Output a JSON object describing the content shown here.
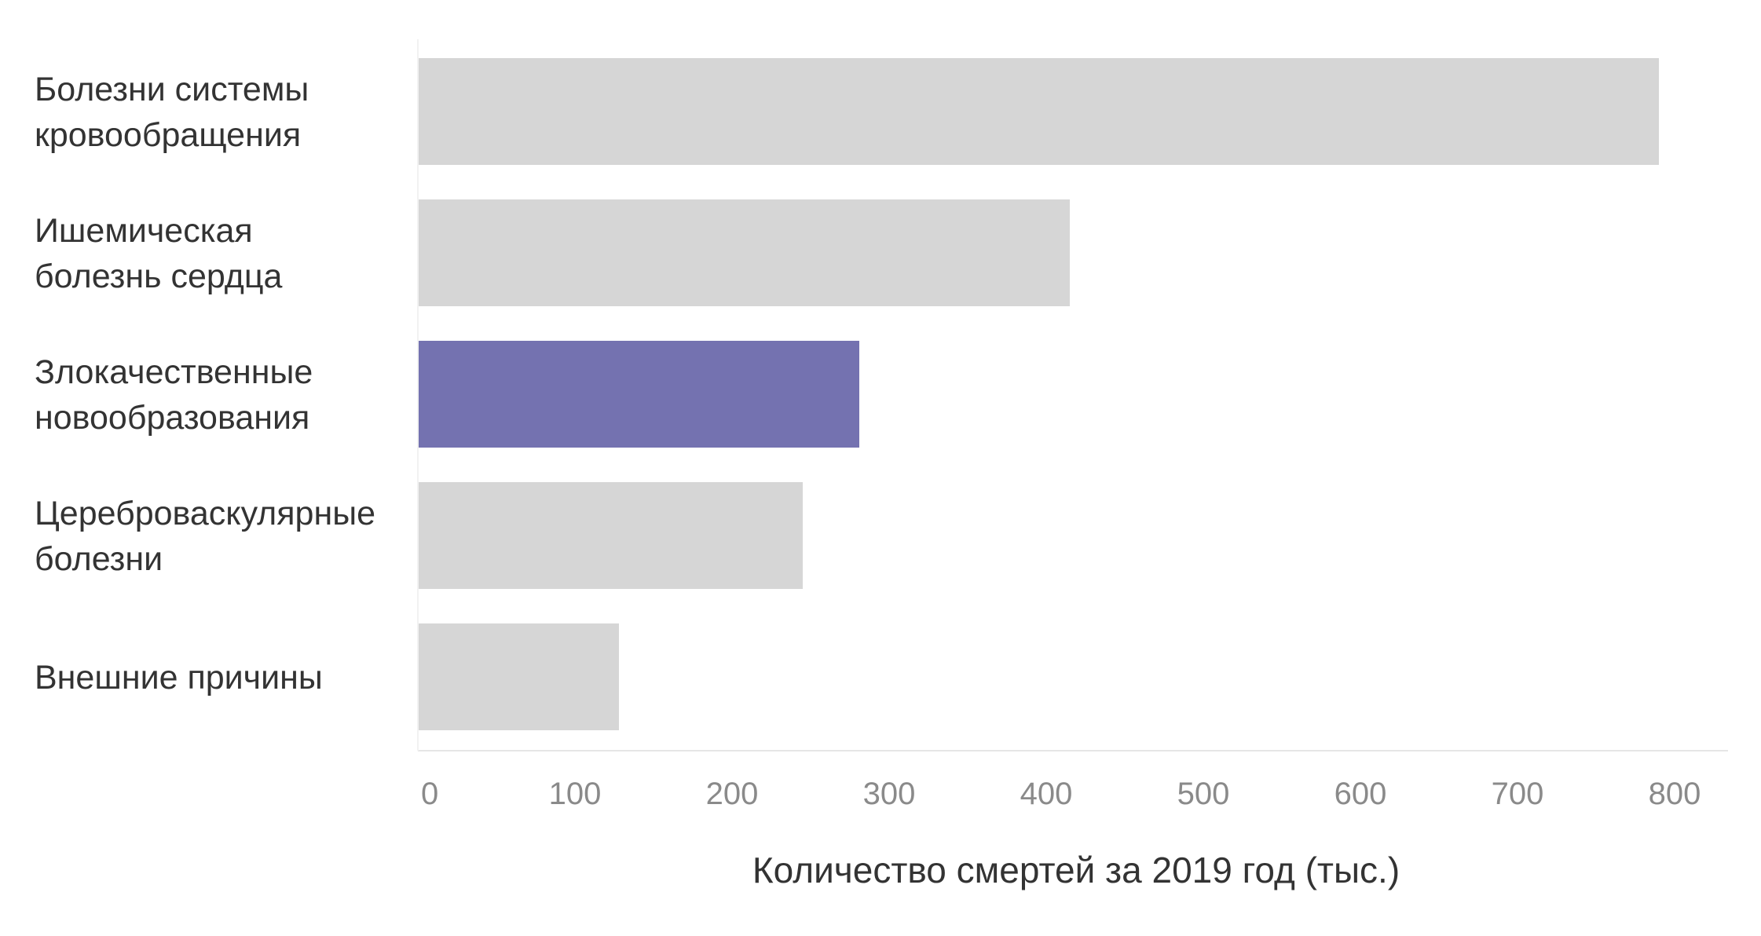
{
  "chart_data": {
    "type": "bar",
    "orientation": "horizontal",
    "categories": [
      [
        "Болезни системы",
        "кровообращения"
      ],
      [
        "Ишемическая",
        "болезнь сердца"
      ],
      [
        "Злокачественные",
        "новообразования"
      ],
      [
        "Цереброваскулярные",
        "болезни"
      ],
      [
        "Внешние причины"
      ]
    ],
    "values": [
      790,
      415,
      281,
      245,
      128
    ],
    "highlight_index": 2,
    "xlabel": "Количество смертей за 2019 год (тыс.)",
    "xlim": [
      0,
      830
    ],
    "xticks": [
      "0",
      "100",
      "200",
      "300",
      "400",
      "500",
      "600",
      "700",
      "800"
    ],
    "grid": false,
    "colors": {
      "bar": "#d6d6d6",
      "highlight": "#7472b0",
      "axis_line": "#e6e6e6"
    }
  }
}
